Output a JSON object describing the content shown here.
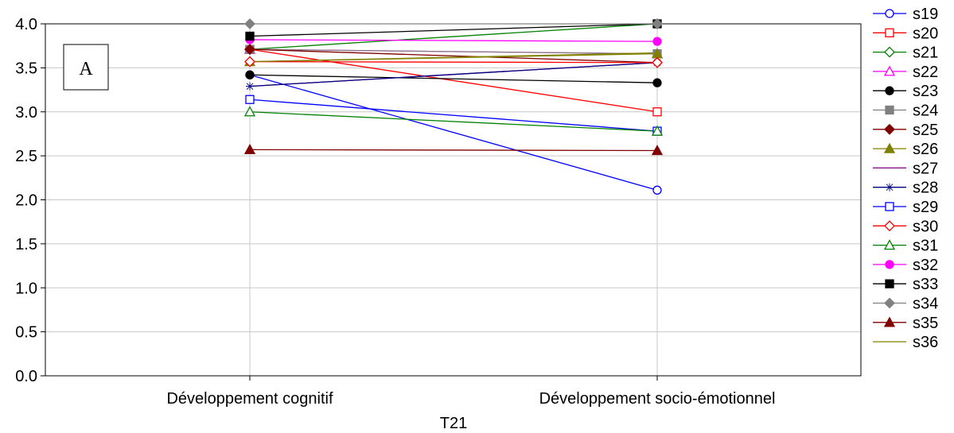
{
  "chart_data": {
    "type": "line",
    "panel_label": "A",
    "xlabel": "T21",
    "ylabel": "",
    "title": "",
    "categories": [
      "Développement cognitif",
      "Développement socio-émotionnel"
    ],
    "ylim": [
      0.0,
      4.0
    ],
    "yticks": [
      "0.0",
      "0.5",
      "1.0",
      "1.5",
      "2.0",
      "2.5",
      "3.0",
      "3.5",
      "4.0"
    ],
    "grid": true,
    "legend_position": "right",
    "series": [
      {
        "name": "s19",
        "values": [
          3.42,
          2.11
        ],
        "color": "#0000ff",
        "marker": "circle-open"
      },
      {
        "name": "s20",
        "values": [
          3.71,
          3.0
        ],
        "color": "#ff0000",
        "marker": "square-open"
      },
      {
        "name": "s21",
        "values": [
          3.71,
          4.0
        ],
        "color": "#008000",
        "marker": "diamond-open"
      },
      {
        "name": "s22",
        "values": [
          3.71,
          3.66
        ],
        "color": "#ff00ff",
        "marker": "triangle-open"
      },
      {
        "name": "s23",
        "values": [
          3.42,
          3.33
        ],
        "color": "#000000",
        "marker": "circle-filled"
      },
      {
        "name": "s24",
        "values": [
          3.71,
          3.66
        ],
        "color": "#808080",
        "marker": "square-filled"
      },
      {
        "name": "s25",
        "values": [
          3.71,
          3.56
        ],
        "color": "#800000",
        "marker": "diamond-filled"
      },
      {
        "name": "s26",
        "values": [
          3.57,
          3.66
        ],
        "color": "#808000",
        "marker": "triangle-filled"
      },
      {
        "name": "s27",
        "values": [
          3.29,
          3.56
        ],
        "color": "#800080",
        "marker": "none"
      },
      {
        "name": "s28",
        "values": [
          3.29,
          3.56
        ],
        "color": "#000080",
        "marker": "star"
      },
      {
        "name": "s29",
        "values": [
          3.14,
          2.78
        ],
        "color": "#0000ff",
        "marker": "square-open"
      },
      {
        "name": "s30",
        "values": [
          3.57,
          3.56
        ],
        "color": "#ff0000",
        "marker": "diamond-open"
      },
      {
        "name": "s31",
        "values": [
          3.0,
          2.78
        ],
        "color": "#008000",
        "marker": "triangle-open"
      },
      {
        "name": "s32",
        "values": [
          3.82,
          3.8
        ],
        "color": "#ff00ff",
        "marker": "circle-filled"
      },
      {
        "name": "s33",
        "values": [
          3.86,
          4.0
        ],
        "color": "#000000",
        "marker": "square-filled"
      },
      {
        "name": "s34",
        "values": [
          4.0,
          4.0
        ],
        "color": "#808080",
        "marker": "diamond-filled"
      },
      {
        "name": "s35",
        "values": [
          2.57,
          2.56
        ],
        "color": "#800000",
        "marker": "triangle-filled"
      },
      {
        "name": "s36",
        "values": [
          3.57,
          3.67
        ],
        "color": "#808000",
        "marker": "none"
      }
    ]
  }
}
